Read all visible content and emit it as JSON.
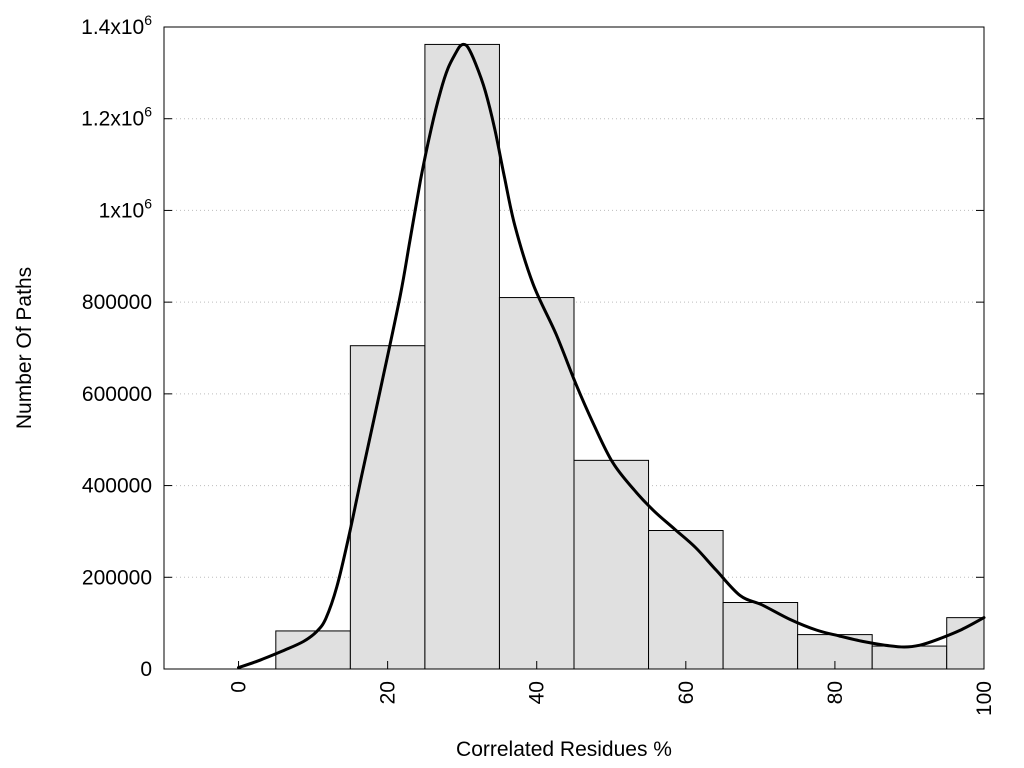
{
  "chart_data": {
    "type": "bar",
    "xlabel": "Correlated Residues %",
    "ylabel": "Number Of Paths",
    "xlim": [
      -10,
      100
    ],
    "ylim": [
      0,
      1400000
    ],
    "grid": true,
    "bar_color": "#e0e0e0",
    "bin_width": 10,
    "x": [
      10,
      20,
      30,
      40,
      50,
      60,
      70,
      80,
      90,
      100
    ],
    "values": [
      83000,
      705000,
      1362000,
      810000,
      455000,
      302000,
      145000,
      75000,
      50000,
      112000
    ],
    "y_ticks": [
      {
        "value": 0,
        "label": "0"
      },
      {
        "value": 200000,
        "label": "200000"
      },
      {
        "value": 400000,
        "label": "400000"
      },
      {
        "value": 600000,
        "label": "600000"
      },
      {
        "value": 800000,
        "label": "800000"
      },
      {
        "value": 1000000,
        "label": "1x10",
        "exp": "6"
      },
      {
        "value": 1200000,
        "label": "1.2x10",
        "exp": "6"
      },
      {
        "value": 1400000,
        "label": "1.4x10",
        "exp": "6"
      }
    ],
    "x_ticks": [
      {
        "value": 0,
        "label": "0"
      },
      {
        "value": 20,
        "label": "20"
      },
      {
        "value": 40,
        "label": "40"
      },
      {
        "value": 60,
        "label": "60"
      },
      {
        "value": 80,
        "label": "80"
      },
      {
        "value": 100,
        "label": "100"
      }
    ],
    "curve": {
      "color": "#000000",
      "x": [
        0,
        3,
        6,
        8.7,
        10.5,
        11.7,
        13.2,
        14.8,
        16.5,
        19.3,
        21.7,
        23,
        24.4,
        25.8,
        27.1,
        28.1,
        29.2,
        29.7,
        30.2,
        30.8,
        31.8,
        33.1,
        34.4,
        35.7,
        37.1,
        39.5,
        42.6,
        45.3,
        47.6,
        50.2,
        53.1,
        55.7,
        58.5,
        61.3,
        64.1,
        67.3,
        70.2,
        74,
        77.5,
        80.6,
        83.8,
        86.7,
        89.3,
        91.4,
        93.7,
        97,
        100
      ],
      "y": [
        3000,
        20000,
        40000,
        60000,
        82000,
        110000,
        180000,
        290000,
        420000,
        630000,
        815000,
        935000,
        1065000,
        1175000,
        1260000,
        1310000,
        1345000,
        1358000,
        1362000,
        1355000,
        1320000,
        1260000,
        1175000,
        1070000,
        965000,
        840000,
        730000,
        620000,
        535000,
        450000,
        390000,
        345000,
        305000,
        265000,
        215000,
        160000,
        140000,
        108000,
        85000,
        72000,
        60000,
        52000,
        48000,
        52000,
        64000,
        86000,
        112000
      ]
    }
  }
}
